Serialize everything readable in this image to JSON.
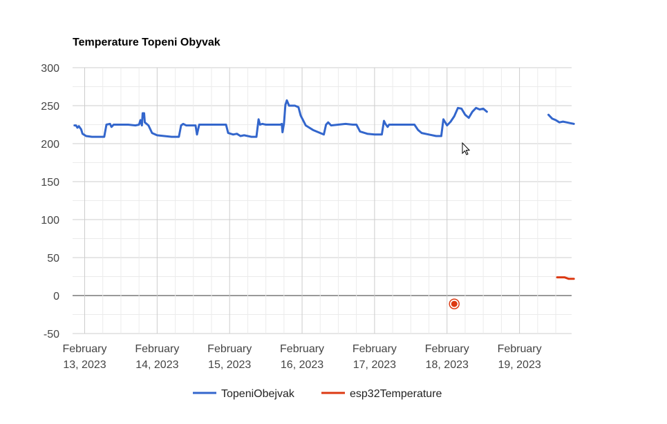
{
  "chart_data": {
    "type": "line",
    "title": "Temperature Topeni Obyvak",
    "xlabel": "",
    "ylabel": "",
    "ylim": [
      -50,
      300
    ],
    "yticks": [
      "300",
      "250",
      "200",
      "150",
      "100",
      "50",
      "0",
      "-50"
    ],
    "ytick_values": [
      300,
      250,
      200,
      150,
      100,
      50,
      0,
      -50
    ],
    "x_range_days": [
      12.85,
      19.75
    ],
    "xticks": [
      {
        "day": 13,
        "line1": "February",
        "line2": "13, 2023"
      },
      {
        "day": 14,
        "line1": "February",
        "line2": "14, 2023"
      },
      {
        "day": 15,
        "line1": "February",
        "line2": "15, 2023"
      },
      {
        "day": 16,
        "line1": "February",
        "line2": "16, 2023"
      },
      {
        "day": 17,
        "line1": "February",
        "line2": "17, 2023"
      },
      {
        "day": 18,
        "line1": "February",
        "line2": "18, 2023"
      },
      {
        "day": 19,
        "line1": "February",
        "line2": "19, 2023"
      }
    ],
    "grid": true,
    "legend_position": "bottom",
    "series": [
      {
        "name": "TopeniObejvak",
        "color": "#3366cc",
        "segments": [
          [
            [
              12.86,
              224
            ],
            [
              12.88,
              224
            ],
            [
              12.9,
              221
            ],
            [
              12.92,
              223
            ],
            [
              12.95,
              219
            ],
            [
              12.97,
              213
            ],
            [
              13.02,
              210
            ],
            [
              13.1,
              209
            ],
            [
              13.15,
              209
            ],
            [
              13.27,
              209
            ],
            [
              13.3,
              225
            ],
            [
              13.35,
              226
            ],
            [
              13.37,
              222
            ],
            [
              13.4,
              225
            ],
            [
              13.5,
              225
            ],
            [
              13.6,
              225
            ],
            [
              13.7,
              224
            ],
            [
              13.75,
              225
            ],
            [
              13.77,
              231
            ],
            [
              13.79,
              224
            ],
            [
              13.8,
              240
            ],
            [
              13.82,
              240
            ],
            [
              13.83,
              228
            ],
            [
              13.88,
              224
            ],
            [
              13.93,
              214
            ],
            [
              14.0,
              211
            ],
            [
              14.1,
              210
            ],
            [
              14.2,
              209
            ],
            [
              14.3,
              209
            ],
            [
              14.33,
              224
            ],
            [
              14.36,
              226
            ],
            [
              14.4,
              224
            ],
            [
              14.5,
              224
            ],
            [
              14.53,
              224
            ],
            [
              14.55,
              212
            ],
            [
              14.58,
              225
            ],
            [
              14.7,
              225
            ],
            [
              14.8,
              225
            ],
            [
              14.9,
              225
            ],
            [
              14.95,
              225
            ],
            [
              14.98,
              214
            ],
            [
              15.05,
              212
            ],
            [
              15.1,
              213
            ],
            [
              15.15,
              210
            ],
            [
              15.2,
              211
            ],
            [
              15.3,
              209
            ],
            [
              15.37,
              209
            ],
            [
              15.4,
              232
            ],
            [
              15.42,
              225
            ],
            [
              15.45,
              226
            ],
            [
              15.5,
              225
            ],
            [
              15.6,
              225
            ],
            [
              15.7,
              225
            ],
            [
              15.72,
              226
            ],
            [
              15.73,
              215
            ],
            [
              15.75,
              226
            ],
            [
              15.77,
              251
            ],
            [
              15.79,
              257
            ],
            [
              15.82,
              250
            ],
            [
              15.9,
              250
            ],
            [
              15.95,
              248
            ],
            [
              15.98,
              237
            ],
            [
              16.05,
              224
            ],
            [
              16.15,
              218
            ],
            [
              16.25,
              214
            ],
            [
              16.3,
              212
            ],
            [
              16.33,
              225
            ],
            [
              16.36,
              228
            ],
            [
              16.4,
              224
            ],
            [
              16.5,
              225
            ],
            [
              16.6,
              226
            ],
            [
              16.7,
              225
            ],
            [
              16.75,
              225
            ],
            [
              16.8,
              216
            ],
            [
              16.9,
              213
            ],
            [
              17.0,
              212
            ],
            [
              17.1,
              212
            ],
            [
              17.13,
              230
            ],
            [
              17.15,
              226
            ],
            [
              17.18,
              222
            ],
            [
              17.2,
              225
            ],
            [
              17.3,
              225
            ],
            [
              17.4,
              225
            ],
            [
              17.5,
              225
            ],
            [
              17.55,
              225
            ],
            [
              17.6,
              218
            ],
            [
              17.65,
              214
            ],
            [
              17.75,
              212
            ],
            [
              17.85,
              210
            ],
            [
              17.92,
              210
            ],
            [
              17.95,
              232
            ],
            [
              18.0,
              224
            ],
            [
              18.05,
              229
            ],
            [
              18.1,
              236
            ],
            [
              18.15,
              247
            ],
            [
              18.2,
              246
            ],
            [
              18.25,
              238
            ],
            [
              18.3,
              234
            ],
            [
              18.35,
              242
            ],
            [
              18.4,
              247
            ],
            [
              18.45,
              245
            ],
            [
              18.5,
              246
            ],
            [
              18.55,
              242
            ]
          ],
          [
            [
              19.4,
              238
            ],
            [
              19.45,
              233
            ],
            [
              19.5,
              231
            ],
            [
              19.55,
              228
            ],
            [
              19.6,
              229
            ],
            [
              19.65,
              228
            ],
            [
              19.7,
              227
            ],
            [
              19.75,
              226
            ]
          ]
        ]
      },
      {
        "name": "esp32Temperature",
        "color": "#dc3912",
        "segments": [
          [
            [
              19.52,
              24
            ],
            [
              19.55,
              24
            ],
            [
              19.58,
              24
            ],
            [
              19.62,
              24
            ],
            [
              19.65,
              23
            ],
            [
              19.68,
              22
            ],
            [
              19.72,
              22
            ],
            [
              19.75,
              22
            ]
          ]
        ],
        "markers": [
          [
            18.1,
            -11
          ]
        ]
      }
    ]
  }
}
